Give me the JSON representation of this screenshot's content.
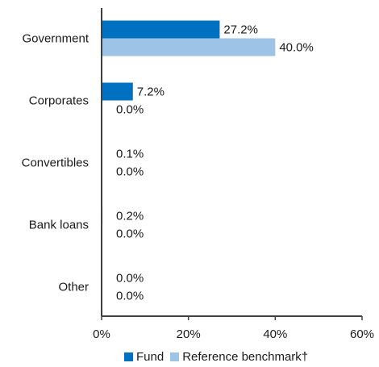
{
  "chart_data": {
    "type": "bar",
    "orientation": "horizontal",
    "categories": [
      "Government",
      "Corporates",
      "Convertibles",
      "Bank loans",
      "Other"
    ],
    "series": [
      {
        "name": "Fund",
        "values": [
          27.2,
          7.2,
          0.1,
          0.2,
          0.0
        ],
        "labels": [
          "27.2%",
          "7.2%",
          "0.1%",
          "0.2%",
          "0.0%"
        ],
        "color": "#0070c0"
      },
      {
        "name": "Reference benchmark†",
        "values": [
          40.0,
          0.0,
          0.0,
          0.0,
          0.0
        ],
        "labels": [
          "40.0%",
          "0.0%",
          "0.0%",
          "0.0%",
          "0.0%"
        ],
        "color": "#9dc3e6"
      }
    ],
    "xlim": [
      0,
      60
    ],
    "xticks": [
      "0%",
      "20%",
      "40%",
      "60%"
    ],
    "grid": false,
    "legend_position": "bottom",
    "title": "",
    "xlabel": "",
    "ylabel": ""
  },
  "axis_color": "#404040"
}
